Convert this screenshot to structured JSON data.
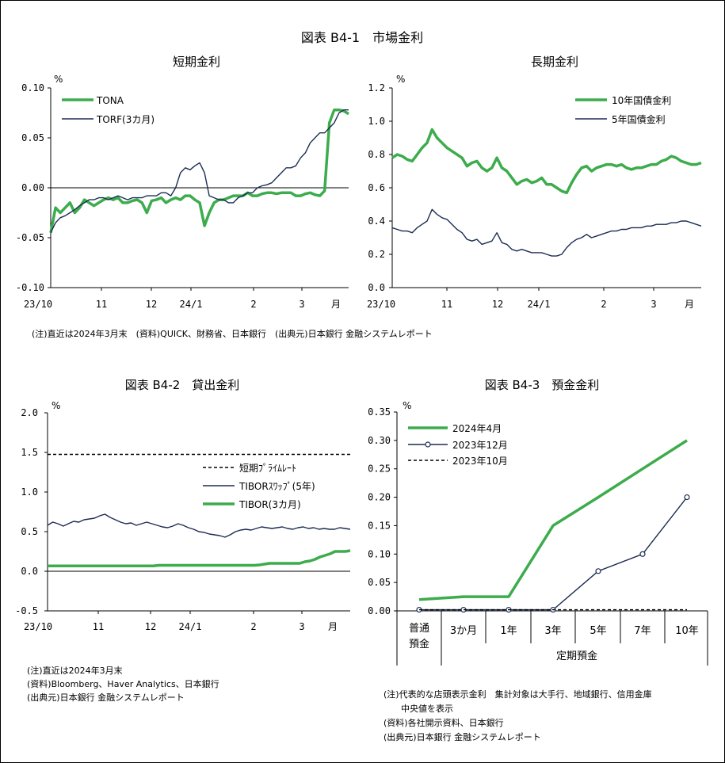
{
  "figure_title": "図表 B4-1　市場金利",
  "chart_data": [
    {
      "id": "b41a",
      "type": "line",
      "title": "短期金利",
      "ylabel": "%",
      "ylim": [
        -0.1,
        0.1
      ],
      "yticks": [
        "0.10",
        "0.05",
        "0.00",
        "-0.05",
        "-0.10"
      ],
      "xticks": [
        "23/10",
        "11",
        "12",
        "24/1",
        "2",
        "3",
        "月"
      ],
      "legend": "top-left",
      "series": [
        {
          "name": "TONA",
          "color": "#3cac4c",
          "y": [
            -0.045,
            -0.02,
            -0.025,
            -0.02,
            -0.015,
            -0.025,
            -0.02,
            -0.012,
            -0.015,
            -0.018,
            -0.015,
            -0.012,
            -0.01,
            -0.012,
            -0.01,
            -0.015,
            -0.015,
            -0.013,
            -0.012,
            -0.015,
            -0.025,
            -0.013,
            -0.012,
            -0.01,
            -0.015,
            -0.012,
            -0.01,
            -0.012,
            -0.008,
            -0.008,
            -0.012,
            -0.015,
            -0.038,
            -0.025,
            -0.015,
            -0.012,
            -0.012,
            -0.01,
            -0.008,
            -0.008,
            -0.008,
            -0.005,
            -0.008,
            -0.008,
            -0.006,
            -0.005,
            -0.005,
            -0.006,
            -0.005,
            -0.005,
            -0.005,
            -0.008,
            -0.008,
            -0.006,
            -0.005,
            -0.007,
            -0.008,
            -0.003,
            0.065,
            0.078,
            0.078,
            0.077,
            0.074
          ]
        },
        {
          "name": "TORF(3カ月)",
          "color": "#1c2c54",
          "y": [
            -0.045,
            -0.035,
            -0.03,
            -0.028,
            -0.025,
            -0.022,
            -0.018,
            -0.015,
            -0.012,
            -0.012,
            -0.01,
            -0.01,
            -0.012,
            -0.01,
            -0.008,
            -0.01,
            -0.012,
            -0.01,
            -0.01,
            -0.01,
            -0.008,
            -0.008,
            -0.008,
            -0.005,
            -0.005,
            -0.008,
            0.0,
            0.015,
            0.02,
            0.018,
            0.022,
            0.025,
            0.015,
            -0.008,
            -0.01,
            -0.012,
            -0.012,
            -0.015,
            -0.015,
            -0.01,
            -0.008,
            -0.005,
            -0.005,
            0.0,
            0.002,
            0.003,
            0.005,
            0.01,
            0.015,
            0.02,
            0.02,
            0.022,
            0.03,
            0.035,
            0.045,
            0.05,
            0.055,
            0.055,
            0.06,
            0.065,
            0.075,
            0.078,
            0.078
          ]
        }
      ]
    },
    {
      "id": "b41b",
      "type": "line",
      "title": "長期金利",
      "ylabel": "%",
      "ylim": [
        0.0,
        1.2
      ],
      "yticks": [
        "1.2",
        "1.0",
        "0.8",
        "0.6",
        "0.4",
        "0.2",
        "0.0"
      ],
      "xticks": [
        "23/10",
        "11",
        "12",
        "24/1",
        "2",
        "3",
        "月"
      ],
      "legend": "top-right",
      "series": [
        {
          "name": "10年国債金利",
          "color": "#3cac4c",
          "y": [
            0.78,
            0.8,
            0.79,
            0.77,
            0.76,
            0.8,
            0.84,
            0.87,
            0.95,
            0.9,
            0.87,
            0.84,
            0.82,
            0.8,
            0.78,
            0.73,
            0.75,
            0.76,
            0.72,
            0.7,
            0.72,
            0.78,
            0.72,
            0.7,
            0.66,
            0.62,
            0.64,
            0.65,
            0.63,
            0.64,
            0.66,
            0.62,
            0.62,
            0.6,
            0.58,
            0.57,
            0.63,
            0.68,
            0.72,
            0.73,
            0.7,
            0.72,
            0.73,
            0.74,
            0.74,
            0.73,
            0.74,
            0.72,
            0.71,
            0.72,
            0.72,
            0.73,
            0.74,
            0.74,
            0.76,
            0.77,
            0.79,
            0.78,
            0.76,
            0.75,
            0.74,
            0.74,
            0.75
          ]
        },
        {
          "name": "5年国債金利",
          "color": "#1c2c54",
          "y": [
            0.36,
            0.35,
            0.34,
            0.34,
            0.33,
            0.36,
            0.38,
            0.4,
            0.47,
            0.44,
            0.42,
            0.41,
            0.38,
            0.35,
            0.33,
            0.29,
            0.28,
            0.29,
            0.26,
            0.27,
            0.28,
            0.33,
            0.27,
            0.26,
            0.23,
            0.22,
            0.23,
            0.22,
            0.21,
            0.21,
            0.21,
            0.2,
            0.19,
            0.19,
            0.2,
            0.24,
            0.27,
            0.29,
            0.3,
            0.32,
            0.3,
            0.31,
            0.32,
            0.33,
            0.34,
            0.34,
            0.35,
            0.35,
            0.36,
            0.36,
            0.36,
            0.37,
            0.37,
            0.38,
            0.38,
            0.38,
            0.39,
            0.39,
            0.4,
            0.4,
            0.39,
            0.38,
            0.37
          ]
        }
      ]
    },
    {
      "id": "b42",
      "type": "line",
      "title": "図表 B4-2　貸出金利",
      "ylabel": "%",
      "ylim": [
        -0.5,
        2.0
      ],
      "yticks": [
        "2.0",
        "1.5",
        "1.0",
        "0.5",
        "0.0",
        "-0.5"
      ],
      "xticks": [
        "23/10",
        "11",
        "12",
        "24/1",
        "2",
        "3",
        "月"
      ],
      "legend": "right",
      "series": [
        {
          "name": "短期ﾌﾟﾗｲﾑﾚｰﾄ",
          "color": "#000000",
          "style": "dashed",
          "y": [
            1.475,
            1.475
          ]
        },
        {
          "name": "TIBORｽﾜｯﾌﾟ(5年)",
          "color": "#1c2c54",
          "y": [
            0.58,
            0.62,
            0.6,
            0.57,
            0.6,
            0.63,
            0.62,
            0.65,
            0.66,
            0.67,
            0.7,
            0.72,
            0.68,
            0.65,
            0.62,
            0.6,
            0.61,
            0.58,
            0.6,
            0.62,
            0.6,
            0.58,
            0.56,
            0.55,
            0.57,
            0.6,
            0.58,
            0.55,
            0.53,
            0.5,
            0.49,
            0.47,
            0.46,
            0.45,
            0.43,
            0.46,
            0.5,
            0.52,
            0.53,
            0.52,
            0.54,
            0.56,
            0.55,
            0.54,
            0.55,
            0.56,
            0.54,
            0.53,
            0.55,
            0.56,
            0.54,
            0.55,
            0.53,
            0.54,
            0.53,
            0.53,
            0.55,
            0.54,
            0.53
          ]
        },
        {
          "name": "TIBOR(3カ月)",
          "color": "#3cac4c",
          "y": [
            0.068,
            0.068,
            0.068,
            0.068,
            0.068,
            0.068,
            0.068,
            0.068,
            0.068,
            0.068,
            0.068,
            0.068,
            0.068,
            0.068,
            0.068,
            0.068,
            0.068,
            0.068,
            0.068,
            0.068,
            0.068,
            0.068,
            0.075,
            0.075,
            0.075,
            0.075,
            0.075,
            0.075,
            0.075,
            0.075,
            0.075,
            0.075,
            0.075,
            0.075,
            0.075,
            0.075,
            0.075,
            0.075,
            0.075,
            0.075,
            0.075,
            0.075,
            0.08,
            0.09,
            0.1,
            0.1,
            0.1,
            0.1,
            0.1,
            0.1,
            0.1,
            0.12,
            0.13,
            0.15,
            0.18,
            0.2,
            0.22,
            0.25,
            0.25,
            0.25,
            0.26
          ]
        }
      ]
    },
    {
      "id": "b43",
      "type": "line",
      "title": "図表 B4-3　預金金利",
      "ylabel": "%",
      "ylim": [
        0.0,
        0.35
      ],
      "yticks": [
        "0.35",
        "0.30",
        "0.25",
        "0.20",
        "0.15",
        "0.10",
        "0.05",
        "0.00"
      ],
      "categories": [
        "普通預金",
        "3か月",
        "1年",
        "3年",
        "5年",
        "7年",
        "10年"
      ],
      "category_group": "定期預金",
      "legend": "top-left",
      "series": [
        {
          "name": "2024年4月",
          "color": "#3cac4c",
          "values": [
            0.02,
            0.025,
            0.025,
            0.15,
            0.2,
            0.25,
            0.3
          ]
        },
        {
          "name": "2023年12月",
          "color": "#1c2c54",
          "values": [
            0.002,
            0.002,
            0.002,
            0.002,
            0.07,
            0.1,
            0.2
          ]
        },
        {
          "name": "2023年10月",
          "color": "#000000",
          "style": "dashed",
          "values": [
            0.002,
            0.002,
            0.002,
            0.002,
            0.002,
            0.002,
            0.002
          ]
        }
      ]
    }
  ],
  "notes": {
    "b41": "(注)直近は2024年3月末　(資料)QUICK、財務省、日本銀行　(出典元)日本銀行 金融システムレポート",
    "b42": [
      "(注)直近は2024年3月末",
      "(資料)Bloomberg、Haver Analytics、日本銀行",
      "(出典元)日本銀行 金融システムレポート"
    ],
    "b43": [
      "(注)代表的な店頭表示金利　集計対象は大手行、地域銀行、信用金庫",
      "　　中央値を表示",
      "(資料)各社開示資料、日本銀行",
      "(出典元)日本銀行 金融システムレポート"
    ]
  }
}
